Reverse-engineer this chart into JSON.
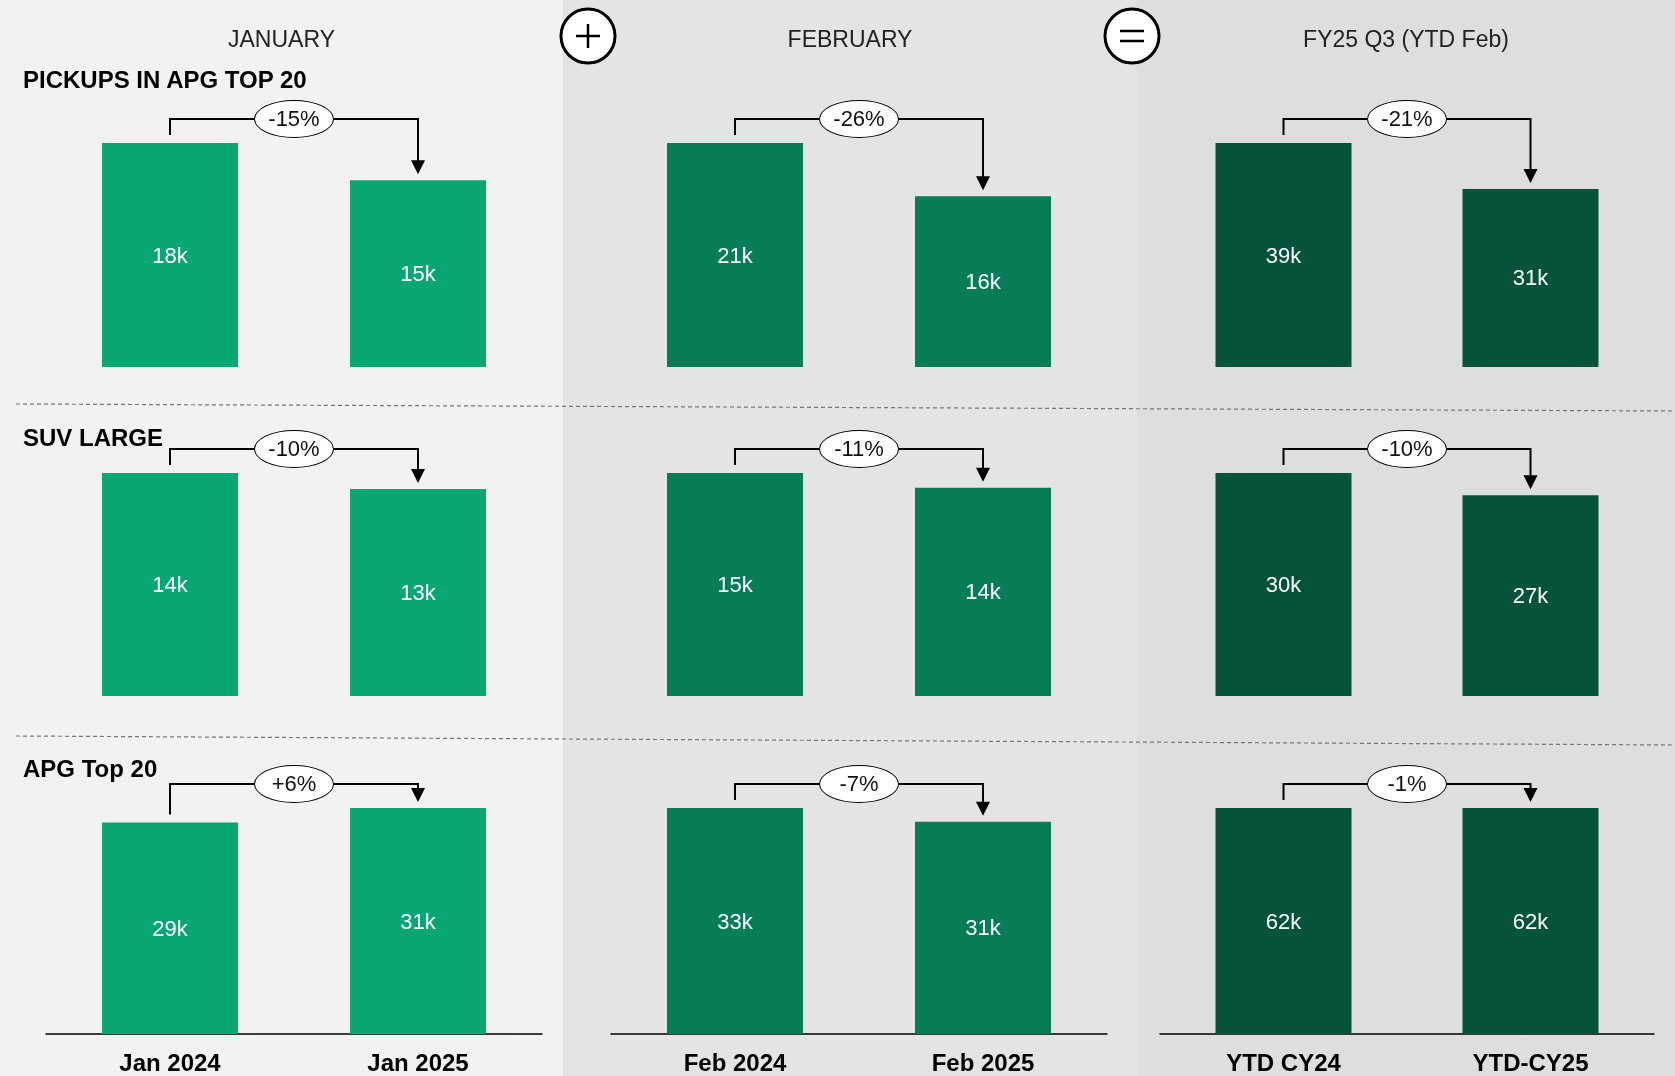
{
  "chart_data": [
    {
      "type": "bar",
      "title": "JANUARY",
      "subtitle": "PICKUPS IN APG TOP 20",
      "categories": [
        null,
        null
      ],
      "values": [
        18,
        15
      ],
      "value_labels": [
        "18k",
        "15k"
      ],
      "color": "#08a673",
      "annotations": [
        "-15%"
      ],
      "tick_labels": false
    },
    {
      "type": "bar",
      "title": "FEBRUARY",
      "categories": [
        null,
        null
      ],
      "values": [
        21,
        16
      ],
      "value_labels": [
        "21k",
        "16k"
      ],
      "color": "#067d57",
      "annotations": [
        "-26%"
      ],
      "tick_labels": false
    },
    {
      "type": "bar",
      "title": "FY25 Q3 (YTD Feb)",
      "categories": [
        null,
        null
      ],
      "values": [
        39,
        31
      ],
      "value_labels": [
        "39k",
        "31k"
      ],
      "color": "#04533a",
      "annotations": [
        "-21%"
      ],
      "tick_labels": false
    },
    {
      "type": "bar",
      "subtitle": "SUV LARGE",
      "categories": [
        null,
        null
      ],
      "values": [
        14,
        13
      ],
      "value_labels": [
        "14k",
        "13k"
      ],
      "color": "#08a673",
      "annotations": [
        "-10%"
      ],
      "tick_labels": false
    },
    {
      "type": "bar",
      "categories": [
        null,
        null
      ],
      "values": [
        15,
        14
      ],
      "value_labels": [
        "15k",
        "14k"
      ],
      "color": "#067d57",
      "annotations": [
        "-11%"
      ],
      "tick_labels": false
    },
    {
      "type": "bar",
      "categories": [
        null,
        null
      ],
      "values": [
        30,
        27
      ],
      "value_labels": [
        "30k",
        "27k"
      ],
      "color": "#04533a",
      "annotations": [
        "-10%"
      ],
      "tick_labels": false
    },
    {
      "type": "bar",
      "subtitle": "APG Top 20",
      "categories": [
        "Jan 2024",
        "Jan 2025"
      ],
      "values": [
        29,
        31
      ],
      "value_labels": [
        "29k",
        "31k"
      ],
      "color": "#08a673",
      "annotations": [
        "+6%"
      ],
      "tick_labels": "x"
    },
    {
      "type": "bar",
      "categories": [
        "Feb 2024",
        "Feb 2025"
      ],
      "values": [
        33,
        31
      ],
      "value_labels": [
        "33k",
        "31k"
      ],
      "color": "#067d57",
      "annotations": [
        "-7%"
      ],
      "tick_labels": "x"
    },
    {
      "type": "bar",
      "categories": [
        "YTD CY24",
        "YTD-CY25"
      ],
      "values": [
        62,
        62
      ],
      "value_labels": [
        "62k",
        "62k"
      ],
      "color": "#04533a",
      "annotations": [
        "-1%"
      ],
      "tick_labels": "x"
    }
  ]
}
